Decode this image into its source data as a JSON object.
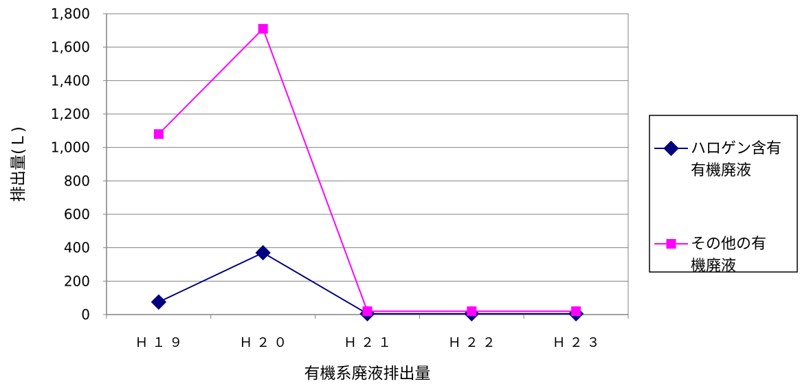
{
  "chart_data": {
    "type": "line",
    "categories": [
      "H19",
      "H20",
      "H21",
      "H22",
      "H23"
    ],
    "category_labels": [
      "Ｈ１９",
      "Ｈ２０",
      "Ｈ２１",
      "Ｈ２２",
      "Ｈ２３"
    ],
    "series": [
      {
        "name": "ハロゲン含有有機廃液",
        "name_lines": [
          "ハロゲン含有",
          "有機廃液"
        ],
        "color": "#000080",
        "marker": "diamond",
        "values": [
          75,
          370,
          5,
          5,
          5
        ]
      },
      {
        "name": "その他の有機廃液",
        "name_lines": [
          "その他の有",
          "機廃液"
        ],
        "color": "#FF00FF",
        "marker": "square",
        "values": [
          1080,
          1710,
          20,
          20,
          20
        ]
      }
    ],
    "xlabel": "有機系廃液排出量",
    "ylabel": "排出量(Ｌ)",
    "ylim": [
      0,
      1800
    ],
    "yticks": [
      0,
      200,
      400,
      600,
      800,
      1000,
      1200,
      1400,
      1600,
      1800
    ],
    "ytick_labels": [
      "0",
      "200",
      "400",
      "600",
      "800",
      "1,000",
      "1,200",
      "1,400",
      "1,600",
      "1,800"
    ],
    "grid": true,
    "legend_position": "right"
  }
}
